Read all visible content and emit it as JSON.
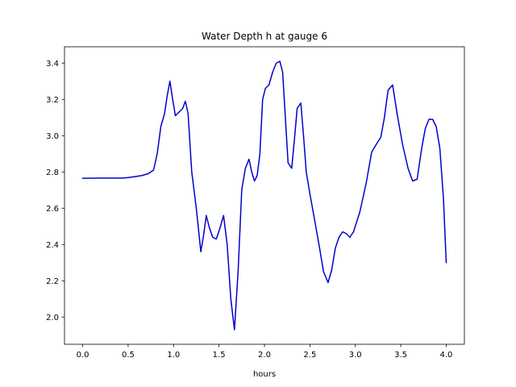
{
  "chart_data": {
    "type": "line",
    "title": "Water Depth h at gauge 6",
    "xlabel": "hours",
    "ylabel": "",
    "xlim": [
      -0.2,
      4.2
    ],
    "ylim": [
      1.85,
      3.49
    ],
    "xticks": [
      0.0,
      0.5,
      1.0,
      1.5,
      2.0,
      2.5,
      3.0,
      3.5,
      4.0
    ],
    "xtick_labels": [
      "0.0",
      "0.5",
      "1.0",
      "1.5",
      "2.0",
      "2.5",
      "3.0",
      "3.5",
      "4.0"
    ],
    "yticks": [
      2.0,
      2.2,
      2.4,
      2.6,
      2.8,
      3.0,
      3.2,
      3.4
    ],
    "ytick_labels": [
      "2.0",
      "2.2",
      "2.4",
      "2.6",
      "2.8",
      "3.0",
      "3.2",
      "3.4"
    ],
    "grid": false,
    "series": [
      {
        "name": "",
        "color": "#0000cc",
        "x": [
          0.0,
          0.2,
          0.45,
          0.55,
          0.65,
          0.72,
          0.78,
          0.82,
          0.86,
          0.9,
          0.93,
          0.96,
          0.99,
          1.02,
          1.06,
          1.1,
          1.13,
          1.16,
          1.2,
          1.25,
          1.3,
          1.33,
          1.36,
          1.39,
          1.43,
          1.47,
          1.51,
          1.55,
          1.59,
          1.63,
          1.67,
          1.71,
          1.75,
          1.79,
          1.83,
          1.86,
          1.89,
          1.92,
          1.95,
          1.98,
          2.01,
          2.05,
          2.09,
          2.13,
          2.17,
          2.2,
          2.23,
          2.26,
          2.3,
          2.33,
          2.36,
          2.4,
          2.43,
          2.46,
          2.5,
          2.55,
          2.6,
          2.65,
          2.7,
          2.74,
          2.78,
          2.82,
          2.86,
          2.9,
          2.94,
          2.98,
          3.05,
          3.12,
          3.18,
          3.24,
          3.28,
          3.32,
          3.36,
          3.41,
          3.46,
          3.52,
          3.58,
          3.63,
          3.68,
          3.73,
          3.77,
          3.81,
          3.85,
          3.89,
          3.93,
          3.97,
          4.0
        ],
        "y": [
          2.765,
          2.766,
          2.766,
          2.772,
          2.78,
          2.79,
          2.81,
          2.9,
          3.05,
          3.12,
          3.22,
          3.3,
          3.2,
          3.11,
          3.13,
          3.15,
          3.19,
          3.12,
          2.8,
          2.6,
          2.36,
          2.45,
          2.56,
          2.5,
          2.44,
          2.43,
          2.49,
          2.56,
          2.4,
          2.1,
          1.93,
          2.25,
          2.7,
          2.82,
          2.87,
          2.8,
          2.75,
          2.78,
          2.9,
          3.2,
          3.26,
          3.28,
          3.35,
          3.4,
          3.41,
          3.35,
          3.1,
          2.85,
          2.82,
          2.98,
          3.15,
          3.18,
          3.0,
          2.8,
          2.68,
          2.54,
          2.4,
          2.25,
          2.19,
          2.26,
          2.38,
          2.44,
          2.47,
          2.46,
          2.44,
          2.47,
          2.58,
          2.74,
          2.91,
          2.96,
          2.99,
          3.1,
          3.25,
          3.28,
          3.12,
          2.95,
          2.82,
          2.75,
          2.76,
          2.93,
          3.04,
          3.09,
          3.09,
          3.05,
          2.93,
          2.65,
          2.3
        ]
      }
    ]
  }
}
